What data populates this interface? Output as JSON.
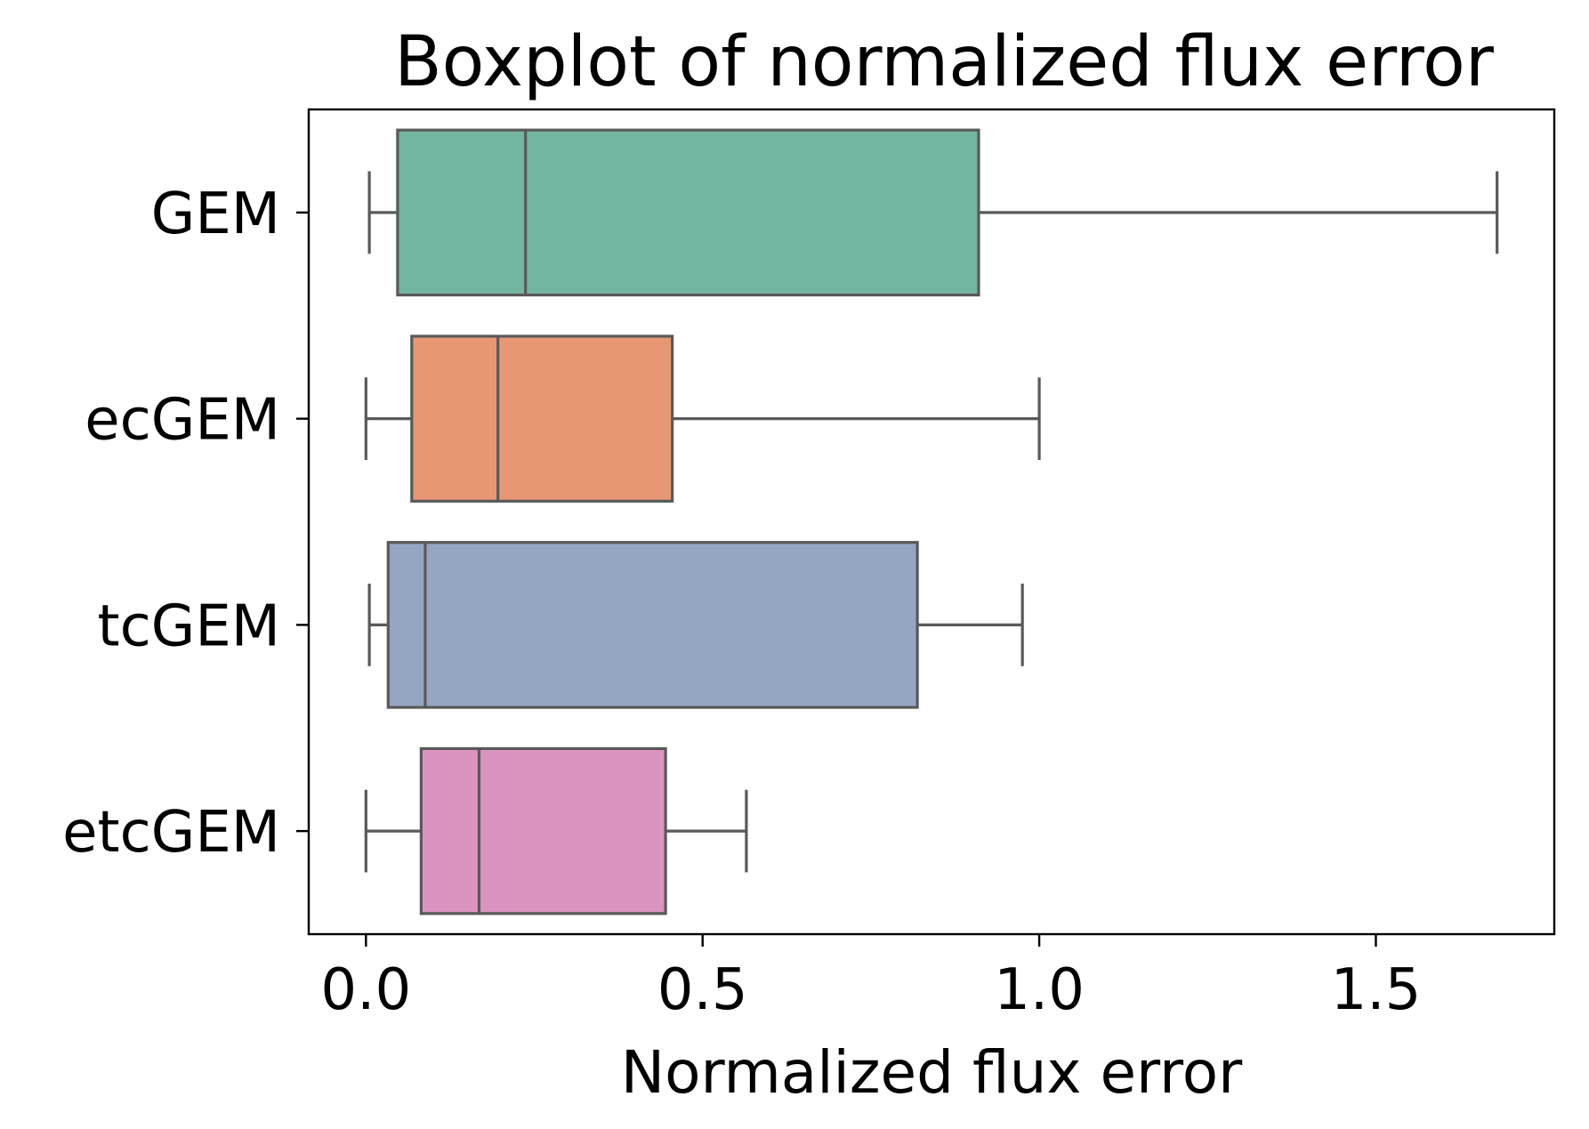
{
  "chart_data": {
    "type": "boxplot",
    "orientation": "horizontal",
    "title": "Boxplot of normalized flux error",
    "xlabel": "Normalized flux error",
    "ylabel": "",
    "xlim": [
      -0.085,
      1.765
    ],
    "xticks": [
      0.0,
      0.5,
      1.0,
      1.5
    ],
    "xtick_labels": [
      "0.0",
      "0.5",
      "1.0",
      "1.5"
    ],
    "grid": false,
    "categories": [
      "GEM",
      "ecGEM",
      "tcGEM",
      "etcGEM"
    ],
    "boxes": [
      {
        "label": "GEM",
        "whislo": 0.005,
        "q1": 0.047,
        "median": 0.237,
        "q3": 0.91,
        "whishi": 1.68,
        "color": "#73b5a1"
      },
      {
        "label": "ecGEM",
        "whislo": 0.0,
        "q1": 0.068,
        "median": 0.196,
        "q3": 0.455,
        "whishi": 1.0,
        "color": "#e89775"
      },
      {
        "label": "tcGEM",
        "whislo": 0.005,
        "q1": 0.033,
        "median": 0.088,
        "q3": 0.819,
        "whishi": 0.975,
        "color": "#95a6c3"
      },
      {
        "label": "etcGEM",
        "whislo": 0.0,
        "q1": 0.082,
        "median": 0.168,
        "q3": 0.445,
        "whishi": 0.565,
        "color": "#db94c0"
      }
    ]
  }
}
